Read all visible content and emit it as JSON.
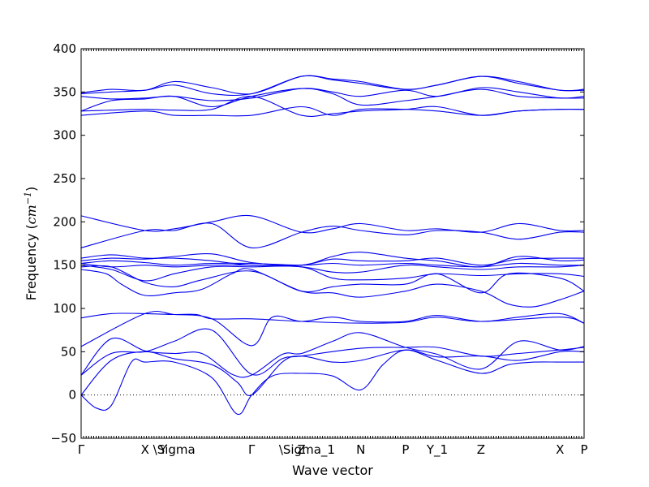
{
  "chart_data": {
    "type": "line",
    "title": "",
    "xlabel": "Wave vector",
    "ylabel": "Frequency",
    "ylabel_unit": "cm",
    "ylabel_unit_exp": "−1",
    "ylim": [
      -50,
      400
    ],
    "yticks": [
      -50,
      0,
      50,
      100,
      150,
      200,
      250,
      300,
      350,
      400
    ],
    "xlim": [
      0,
      1
    ],
    "grid": false,
    "zero_line": true,
    "colors": {
      "bands": "#0000ee",
      "zero_line": "#000000"
    },
    "high_symmetry_points": [
      {
        "label": "Γ",
        "x": 0.0
      },
      {
        "label": "X",
        "x": 0.127
      },
      {
        "label": "Y",
        "x": 0.163
      },
      {
        "label": "\\Sigma",
        "x": 0.185
      },
      {
        "label": "Γ",
        "x": 0.339
      },
      {
        "label": "Z",
        "x": 0.438
      },
      {
        "label": "\\Sigma_1",
        "x": 0.449
      },
      {
        "label": "N",
        "x": 0.556
      },
      {
        "label": "P",
        "x": 0.645
      },
      {
        "label": "Y_1",
        "x": 0.708
      },
      {
        "label": "Z",
        "x": 0.795
      },
      {
        "label": "X",
        "x": 0.952
      },
      {
        "label": "P",
        "x": 1.0
      }
    ],
    "series": [
      {
        "x": [
          0,
          0.03,
          0.06,
          0.1,
          0.127,
          0.185,
          0.26,
          0.31,
          0.339,
          0.38,
          0.438,
          0.5,
          0.556,
          0.6,
          0.645,
          0.708,
          0.795,
          0.85,
          0.9,
          0.952,
          1.0
        ],
        "values": [
          0,
          -15,
          -12,
          38,
          38,
          38,
          20,
          -22,
          0,
          22,
          25,
          22,
          6,
          35,
          52,
          40,
          25,
          35,
          38,
          38,
          38
        ]
      },
      {
        "x": [
          0,
          0.06,
          0.127,
          0.185,
          0.26,
          0.31,
          0.339,
          0.4,
          0.438,
          0.5,
          0.556,
          0.645,
          0.708,
          0.795,
          0.87,
          0.952,
          1.0
        ],
        "values": [
          0,
          40,
          50,
          42,
          35,
          15,
          0,
          38,
          45,
          38,
          40,
          52,
          44,
          45,
          40,
          50,
          50
        ]
      },
      {
        "x": [
          0,
          0.06,
          0.127,
          0.185,
          0.26,
          0.339,
          0.4,
          0.438,
          0.556,
          0.645,
          0.708,
          0.795,
          0.87,
          0.952,
          1.0
        ],
        "values": [
          23,
          48,
          50,
          62,
          75,
          24,
          42,
          45,
          54,
          55,
          55,
          45,
          48,
          52,
          55
        ]
      },
      {
        "x": [
          0,
          0.06,
          0.127,
          0.185,
          0.24,
          0.3,
          0.339,
          0.4,
          0.438,
          0.5,
          0.556,
          0.645,
          0.708,
          0.795,
          0.87,
          0.952,
          1.0
        ],
        "values": [
          23,
          65,
          51,
          48,
          48,
          24,
          23,
          47,
          48,
          62,
          72,
          55,
          47,
          30,
          62,
          52,
          56
        ]
      },
      {
        "x": [
          0,
          0.127,
          0.185,
          0.26,
          0.339,
          0.38,
          0.438,
          0.5,
          0.556,
          0.645,
          0.708,
          0.795,
          0.87,
          0.952,
          1.0
        ],
        "values": [
          56,
          94,
          93,
          88,
          57,
          90,
          85,
          90,
          85,
          85,
          92,
          85,
          90,
          94,
          83
        ]
      },
      {
        "x": [
          0,
          0.06,
          0.127,
          0.185,
          0.23,
          0.26,
          0.339,
          0.438,
          0.556,
          0.645,
          0.708,
          0.795,
          0.952,
          1.0
        ],
        "values": [
          89,
          94,
          94,
          93,
          93,
          88,
          88,
          85,
          83,
          84,
          90,
          85,
          90,
          83
        ]
      },
      {
        "x": [
          0,
          0.05,
          0.08,
          0.127,
          0.185,
          0.24,
          0.3,
          0.339,
          0.438,
          0.5,
          0.556,
          0.645,
          0.708,
          0.795,
          0.85,
          0.9,
          0.952,
          1.0
        ],
        "values": [
          145,
          140,
          128,
          115,
          118,
          122,
          140,
          145,
          120,
          118,
          113,
          120,
          128,
          120,
          105,
          102,
          110,
          120
        ]
      },
      {
        "x": [
          0,
          0.06,
          0.127,
          0.185,
          0.24,
          0.339,
          0.438,
          0.5,
          0.556,
          0.645,
          0.708,
          0.795,
          0.85,
          0.952,
          1.0
        ],
        "values": [
          148,
          148,
          130,
          125,
          133,
          143,
          120,
          125,
          128,
          128,
          140,
          118,
          140,
          135,
          120
        ]
      },
      {
        "x": [
          0,
          0.06,
          0.127,
          0.185,
          0.26,
          0.339,
          0.438,
          0.5,
          0.556,
          0.645,
          0.708,
          0.795,
          0.87,
          0.952,
          1.0
        ],
        "values": [
          150,
          145,
          132,
          140,
          148,
          148,
          148,
          135,
          133,
          135,
          140,
          138,
          140,
          140,
          137
        ]
      },
      {
        "x": [
          0,
          0.06,
          0.127,
          0.185,
          0.26,
          0.339,
          0.438,
          0.5,
          0.556,
          0.645,
          0.708,
          0.795,
          0.87,
          0.952,
          1.0
        ],
        "values": [
          152,
          148,
          150,
          148,
          150,
          150,
          148,
          142,
          142,
          150,
          148,
          145,
          148,
          148,
          150
        ]
      },
      {
        "x": [
          0,
          0.06,
          0.127,
          0.185,
          0.26,
          0.339,
          0.438,
          0.5,
          0.556,
          0.645,
          0.708,
          0.795,
          0.87,
          0.952,
          1.0
        ],
        "values": [
          152,
          155,
          153,
          150,
          152,
          152,
          150,
          152,
          150,
          152,
          150,
          148,
          152,
          150,
          150
        ]
      },
      {
        "x": [
          0,
          0.06,
          0.127,
          0.185,
          0.26,
          0.339,
          0.438,
          0.5,
          0.556,
          0.645,
          0.708,
          0.795,
          0.87,
          0.952,
          1.0
        ],
        "values": [
          155,
          158,
          157,
          160,
          163,
          153,
          150,
          160,
          165,
          158,
          155,
          148,
          160,
          155,
          156
        ]
      },
      {
        "x": [
          0,
          0.06,
          0.127,
          0.185,
          0.26,
          0.339,
          0.438,
          0.5,
          0.556,
          0.645,
          0.708,
          0.795,
          0.87,
          0.952,
          1.0
        ],
        "values": [
          158,
          162,
          158,
          158,
          155,
          150,
          150,
          157,
          155,
          155,
          158,
          150,
          157,
          158,
          158
        ]
      },
      {
        "x": [
          0,
          0.127,
          0.185,
          0.26,
          0.339,
          0.438,
          0.5,
          0.556,
          0.645,
          0.708,
          0.795,
          0.87,
          0.952,
          1.0
        ],
        "values": [
          170,
          190,
          190,
          198,
          170,
          188,
          195,
          190,
          185,
          190,
          188,
          180,
          188,
          188
        ]
      },
      {
        "x": [
          0,
          0.127,
          0.185,
          0.26,
          0.339,
          0.438,
          0.5,
          0.556,
          0.645,
          0.708,
          0.795,
          0.87,
          0.952,
          1.0
        ],
        "values": [
          207,
          190,
          192,
          200,
          207,
          188,
          192,
          198,
          190,
          192,
          188,
          198,
          190,
          190
        ]
      },
      {
        "x": [
          0,
          0.127,
          0.185,
          0.26,
          0.339,
          0.438,
          0.5,
          0.556,
          0.645,
          0.708,
          0.795,
          0.87,
          0.952,
          1.0
        ],
        "values": [
          323,
          328,
          323,
          323,
          323,
          333,
          323,
          330,
          330,
          328,
          323,
          328,
          330,
          330
        ]
      },
      {
        "x": [
          0,
          0.06,
          0.127,
          0.185,
          0.26,
          0.339,
          0.438,
          0.5,
          0.556,
          0.645,
          0.708,
          0.795,
          0.87,
          0.952,
          1.0
        ],
        "values": [
          328,
          329,
          330,
          329,
          330,
          345,
          323,
          325,
          328,
          330,
          333,
          323,
          328,
          330,
          330
        ]
      },
      {
        "x": [
          0,
          0.06,
          0.127,
          0.185,
          0.26,
          0.339,
          0.438,
          0.5,
          0.556,
          0.645,
          0.708,
          0.795,
          0.87,
          0.952,
          1.0
        ],
        "values": [
          328,
          340,
          342,
          345,
          333,
          345,
          354,
          348,
          335,
          340,
          345,
          353,
          345,
          343,
          343
        ]
      },
      {
        "x": [
          0,
          0.06,
          0.127,
          0.185,
          0.26,
          0.339,
          0.438,
          0.5,
          0.556,
          0.645,
          0.708,
          0.795,
          0.87,
          0.952,
          1.0
        ],
        "values": [
          345,
          342,
          343,
          345,
          340,
          343,
          354,
          350,
          345,
          352,
          345,
          355,
          350,
          343,
          345
        ]
      },
      {
        "x": [
          0,
          0.06,
          0.127,
          0.185,
          0.26,
          0.339,
          0.438,
          0.5,
          0.556,
          0.645,
          0.708,
          0.795,
          0.87,
          0.952,
          1.0
        ],
        "values": [
          348,
          350,
          352,
          358,
          348,
          348,
          368,
          364,
          360,
          353,
          358,
          368,
          360,
          352,
          352
        ]
      },
      {
        "x": [
          0,
          0.06,
          0.127,
          0.185,
          0.26,
          0.339,
          0.438,
          0.5,
          0.556,
          0.645,
          0.708,
          0.795,
          0.87,
          0.952,
          1.0
        ],
        "values": [
          349,
          353,
          352,
          362,
          355,
          348,
          368,
          365,
          362,
          353,
          358,
          368,
          362,
          352,
          353
        ]
      }
    ]
  }
}
